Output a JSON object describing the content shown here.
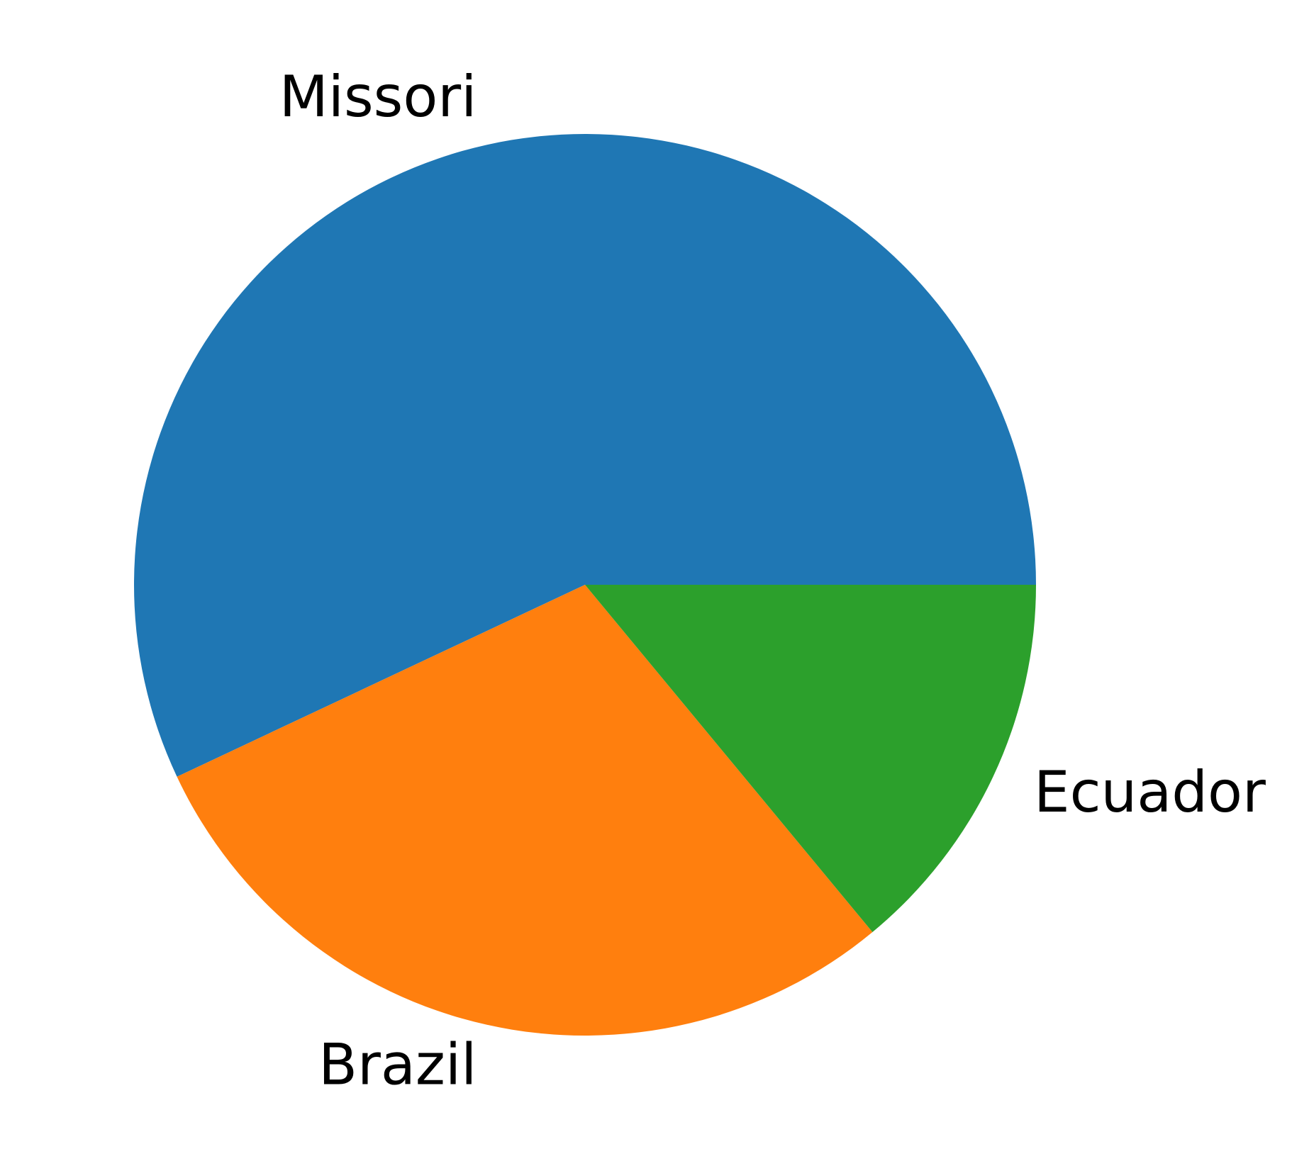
{
  "chart_data": {
    "type": "pie",
    "title": "",
    "start_angle_deg": 0,
    "direction": "counterclockwise",
    "slices": [
      {
        "label": "Missori",
        "value": 57,
        "color": "#1f77b4"
      },
      {
        "label": "Brazil",
        "value": 29,
        "color": "#ff7f0e"
      },
      {
        "label": "Ecuador",
        "value": 14,
        "color": "#2ca02c"
      }
    ]
  }
}
